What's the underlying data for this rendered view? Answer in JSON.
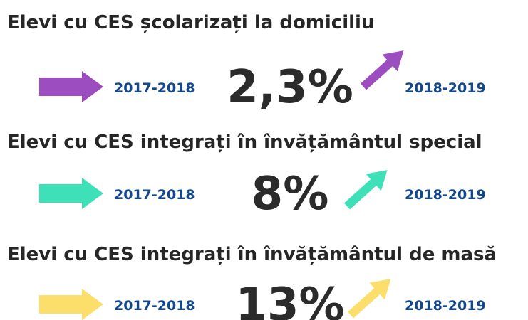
{
  "sections": [
    {
      "title": "Elevi cu CES școlarizați la domiciliu",
      "from": "2017-2018",
      "value": "2,3%",
      "to": "2018-2019"
    },
    {
      "title": "Elevi cu CES integrați în învățământul special",
      "from": "2017-2018",
      "value": "8%",
      "to": "2018-2019"
    },
    {
      "title": "Elevi cu CES integrați în învățământul de masă",
      "from": "2017-2018",
      "value": "13%",
      "to": "2018-2019"
    }
  ]
}
